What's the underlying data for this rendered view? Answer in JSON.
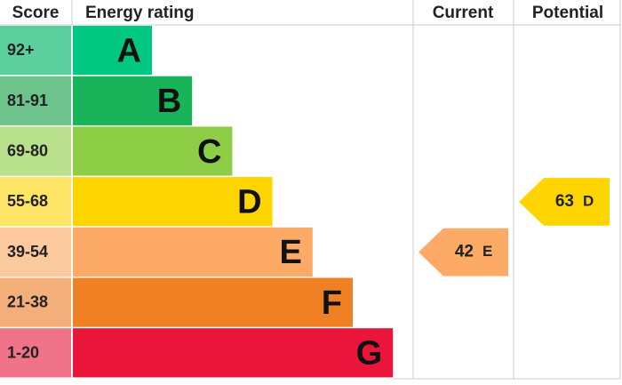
{
  "chart_data": {
    "type": "epc",
    "headers": {
      "score": "Score",
      "rating": "Energy rating",
      "current": "Current",
      "potential": "Potential"
    },
    "bands": [
      {
        "score": "92+",
        "letter": "A",
        "color": "#00c781",
        "score_color": "#5ccf9e"
      },
      {
        "score": "81-91",
        "letter": "B",
        "color": "#19b459",
        "score_color": "#6cc48c"
      },
      {
        "score": "69-80",
        "letter": "C",
        "color": "#8dce46",
        "score_color": "#b9e08c"
      },
      {
        "score": "55-68",
        "letter": "D",
        "color": "#ffd500",
        "score_color": "#ffe566"
      },
      {
        "score": "39-54",
        "letter": "E",
        "color": "#fcaa65",
        "score_color": "#fdcaa0"
      },
      {
        "score": "21-38",
        "letter": "F",
        "color": "#ef8023",
        "score_color": "#f4ae79"
      },
      {
        "score": "1-20",
        "letter": "G",
        "color": "#e9153b",
        "score_color": "#f0738a"
      }
    ],
    "current": {
      "value": 42,
      "letter": "E"
    },
    "potential": {
      "value": 63,
      "letter": "D"
    }
  }
}
